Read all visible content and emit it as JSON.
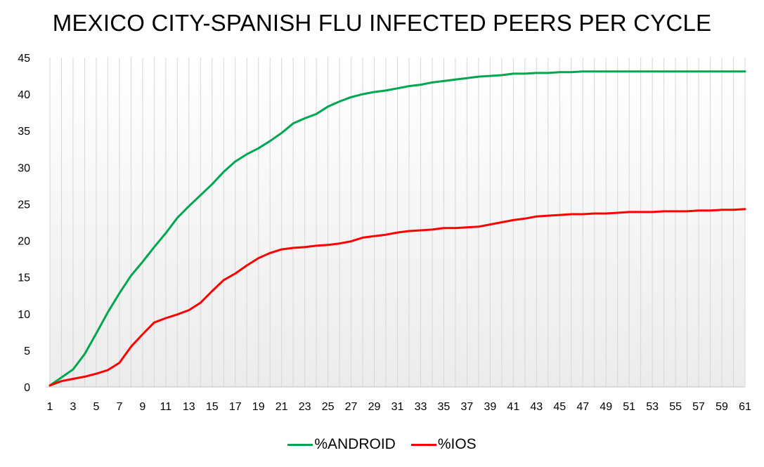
{
  "chart_data": {
    "type": "line",
    "title": "MEXICO CITY-SPANISH FLU INFECTED PEERS PER CYCLE",
    "xlabel": "",
    "ylabel": "",
    "ylim": [
      0,
      45
    ],
    "yticks": [
      "0",
      "5",
      "10",
      "15",
      "20",
      "25",
      "30",
      "35",
      "40",
      "45"
    ],
    "xlim": [
      1,
      61
    ],
    "xticks": [
      "1",
      "3",
      "5",
      "7",
      "9",
      "11",
      "13",
      "15",
      "17",
      "19",
      "21",
      "23",
      "25",
      "27",
      "29",
      "31",
      "33",
      "35",
      "37",
      "39",
      "41",
      "43",
      "45",
      "47",
      "49",
      "51",
      "53",
      "55",
      "57",
      "59",
      "61"
    ],
    "grid": "vertical",
    "legend": "bottom",
    "x": [
      1,
      2,
      3,
      4,
      5,
      6,
      7,
      8,
      9,
      10,
      11,
      12,
      13,
      14,
      15,
      16,
      17,
      18,
      19,
      20,
      21,
      22,
      23,
      24,
      25,
      26,
      27,
      28,
      29,
      30,
      31,
      32,
      33,
      34,
      35,
      36,
      37,
      38,
      39,
      40,
      41,
      42,
      43,
      44,
      45,
      46,
      47,
      48,
      49,
      50,
      51,
      52,
      53,
      54,
      55,
      56,
      57,
      58,
      59,
      60,
      61
    ],
    "series": [
      {
        "name": "%ANDROID",
        "color": "#00A650",
        "values": [
          0.2,
          1.3,
          2.4,
          4.5,
          7.3,
          10.2,
          12.8,
          15.2,
          17.1,
          19.1,
          21.0,
          23.1,
          24.7,
          26.2,
          27.7,
          29.4,
          30.8,
          31.8,
          32.6,
          33.6,
          34.7,
          36.0,
          36.7,
          37.3,
          38.3,
          39.0,
          39.6,
          40.0,
          40.3,
          40.5,
          40.8,
          41.1,
          41.3,
          41.6,
          41.8,
          42.0,
          42.2,
          42.4,
          42.5,
          42.6,
          42.8,
          42.8,
          42.9,
          42.9,
          43.0,
          43.0,
          43.1,
          43.1,
          43.1,
          43.1,
          43.1,
          43.1,
          43.1,
          43.1,
          43.1,
          43.1,
          43.1,
          43.1,
          43.1,
          43.1,
          43.1
        ]
      },
      {
        "name": "%IOS",
        "color": "#FF0000",
        "values": [
          0.2,
          0.8,
          1.1,
          1.4,
          1.8,
          2.3,
          3.3,
          5.5,
          7.2,
          8.8,
          9.4,
          9.9,
          10.5,
          11.5,
          13.1,
          14.6,
          15.5,
          16.6,
          17.6,
          18.3,
          18.8,
          19.0,
          19.1,
          19.3,
          19.4,
          19.6,
          19.9,
          20.4,
          20.6,
          20.8,
          21.1,
          21.3,
          21.4,
          21.5,
          21.7,
          21.7,
          21.8,
          21.9,
          22.2,
          22.5,
          22.8,
          23.0,
          23.3,
          23.4,
          23.5,
          23.6,
          23.6,
          23.7,
          23.7,
          23.8,
          23.9,
          23.9,
          23.9,
          24.0,
          24.0,
          24.0,
          24.1,
          24.1,
          24.2,
          24.2,
          24.3
        ]
      }
    ]
  }
}
